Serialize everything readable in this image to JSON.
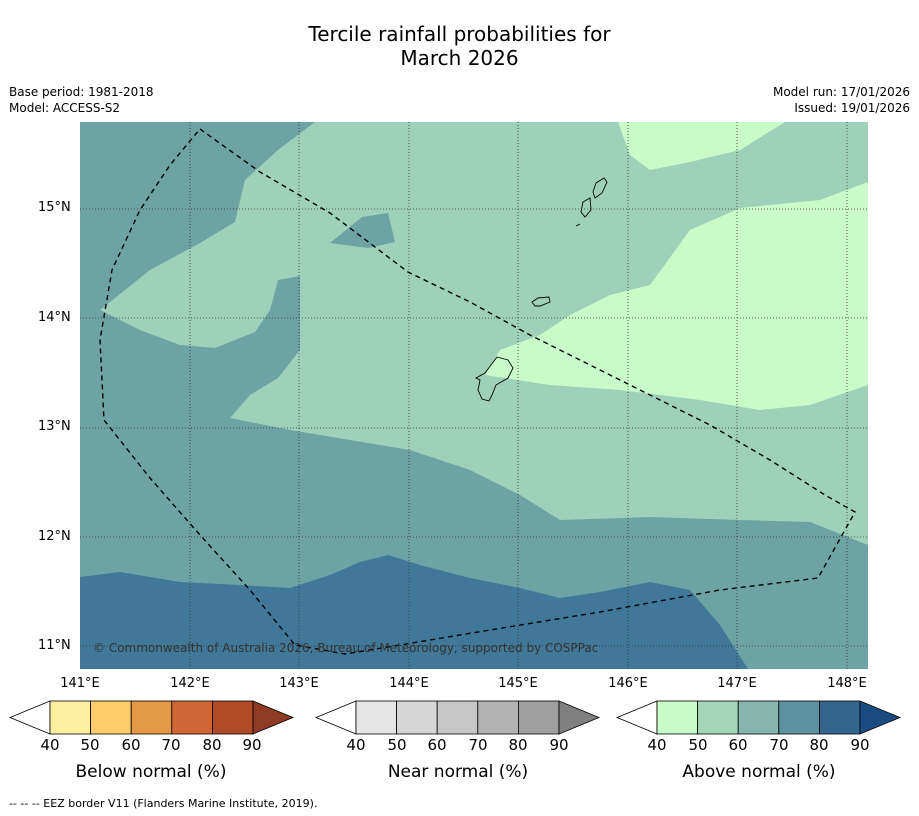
{
  "title_line1": "Tercile rainfall probabilities for",
  "title_line2": "March 2026",
  "base_period": "Base period: 1981-2018",
  "model": "Model: ACCESS-S2",
  "model_run": "Model run: 17/01/2026",
  "issued": "Issued: 19/01/2026",
  "copyright": "© Commonwealth of Australia 2026, Bureau of Meteorology, supported by COSPPac",
  "lat_labels": [
    "15°N",
    "14°N",
    "13°N",
    "12°N",
    "11°N"
  ],
  "lon_labels": [
    "141°E",
    "142°E",
    "143°E",
    "144°E",
    "145°E",
    "146°E",
    "147°E",
    "148°E"
  ],
  "colorbars": [
    {
      "label": "Below normal (%)",
      "ticks": [
        "40",
        "50",
        "60",
        "70",
        "80",
        "90"
      ],
      "colors": [
        "#ffffff",
        "#fdeea0",
        "#fdcd6a",
        "#e39848",
        "#d06634",
        "#b14a27",
        "#8f3a22"
      ]
    },
    {
      "label": "Near normal (%)",
      "ticks": [
        "40",
        "50",
        "60",
        "70",
        "80",
        "90"
      ],
      "colors": [
        "#ffffff",
        "#e5e5e5",
        "#d6d6d6",
        "#c6c6c6",
        "#b3b3b3",
        "#9f9f9f",
        "#808080"
      ]
    },
    {
      "label": "Above normal (%)",
      "ticks": [
        "40",
        "50",
        "60",
        "70",
        "80",
        "90"
      ],
      "colors": [
        "#ffffff",
        "#c9fbc9",
        "#a3d6b8",
        "#86b5ae",
        "#5b91a0",
        "#33658f",
        "#1a4b80"
      ]
    }
  ],
  "footnote": "--  --  -- EEZ border V11 (Flanders Marine Institute, 2019).",
  "map_colors": {
    "p50": "#c9fbc9",
    "p60": "#9ed1b9",
    "p70": "#6da3a5",
    "p80": "#41789a"
  }
}
